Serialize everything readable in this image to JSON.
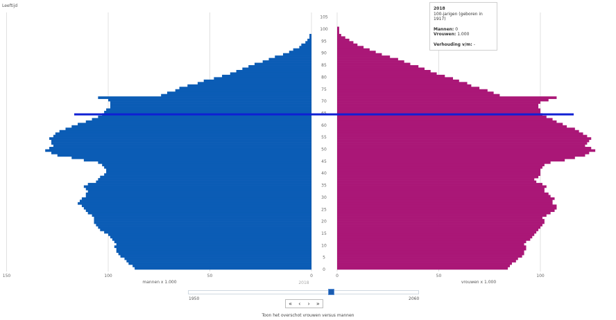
{
  "axis_title_top": "Leeftijd",
  "left_axis_label": "mannen x 1.000",
  "right_axis_label": "vrouwen x 1.000",
  "year_label": "2018",
  "colors": {
    "men": "#0b5cb5",
    "women": "#aa1777",
    "highlight": "#0f1fd4",
    "grid": "#e0e0e0"
  },
  "tooltip": {
    "year": "2018",
    "subtitle": "100-jarigen (geboren in 1917)",
    "men_label": "Mannen:",
    "men_value": "0",
    "women_label": "Vrouwen:",
    "women_value": "1.000",
    "ratio_label": "Verhouding v/m:",
    "ratio_value": "-"
  },
  "slider": {
    "start": "1950",
    "end": "2060",
    "value": 2018
  },
  "nav": {
    "first": "«",
    "prev": "‹",
    "next": "›",
    "last": "»"
  },
  "toggle_text": "Toon het overschot vrouwen versus mannen",
  "chart_data": {
    "type": "bar",
    "orientation": "horizontal",
    "title": "",
    "highlight_age": 64,
    "ylabel": "Leeftijd",
    "y_ticks": [
      0,
      5,
      10,
      15,
      20,
      25,
      30,
      35,
      40,
      45,
      50,
      55,
      60,
      65,
      70,
      75,
      80,
      85,
      90,
      95,
      100,
      105
    ],
    "left_ticks": [
      150,
      100,
      50,
      0
    ],
    "right_ticks": [
      0,
      50,
      100
    ],
    "xlim_men": [
      0,
      150
    ],
    "xlim_women": [
      0,
      125
    ],
    "series": [
      {
        "name": "mannen",
        "values": [
          87,
          88,
          90,
          91,
          92,
          94,
          95,
          96,
          96,
          97,
          96,
          97,
          98,
          99,
          100,
          102,
          104,
          105,
          106,
          107,
          107,
          107,
          108,
          110,
          111,
          112,
          113,
          115,
          114,
          113,
          111,
          111,
          110,
          111,
          112,
          110,
          106,
          105,
          104,
          102,
          101,
          101,
          102,
          103,
          105,
          112,
          118,
          125,
          128,
          131,
          129,
          127,
          128,
          128,
          129,
          127,
          126,
          124,
          121,
          118,
          115,
          111,
          108,
          105,
          103,
          102,
          101,
          99,
          99,
          99,
          100,
          105,
          74,
          71,
          67,
          65,
          61,
          56,
          53,
          48,
          44,
          40,
          37,
          34,
          31,
          28,
          24,
          21,
          18,
          14,
          11,
          9,
          6,
          5,
          3,
          2,
          1,
          1,
          0,
          0,
          0,
          0
        ]
      },
      {
        "name": "vrouwen",
        "values": [
          84,
          85,
          86,
          88,
          89,
          91,
          92,
          92,
          93,
          93,
          92,
          93,
          95,
          96,
          97,
          98,
          99,
          100,
          101,
          102,
          102,
          101,
          103,
          105,
          107,
          108,
          108,
          106,
          106,
          107,
          105,
          104,
          102,
          102,
          103,
          101,
          98,
          97,
          99,
          100,
          100,
          100,
          101,
          102,
          105,
          112,
          117,
          122,
          124,
          127,
          125,
          122,
          123,
          124,
          125,
          123,
          121,
          119,
          117,
          113,
          111,
          108,
          106,
          103,
          101,
          100,
          100,
          99,
          99,
          100,
          104,
          108,
          80,
          77,
          74,
          70,
          66,
          64,
          60,
          57,
          53,
          49,
          46,
          43,
          40,
          36,
          33,
          30,
          26,
          22,
          19,
          16,
          13,
          10,
          8,
          6,
          4,
          2,
          1,
          1,
          1,
          0
        ]
      }
    ]
  }
}
